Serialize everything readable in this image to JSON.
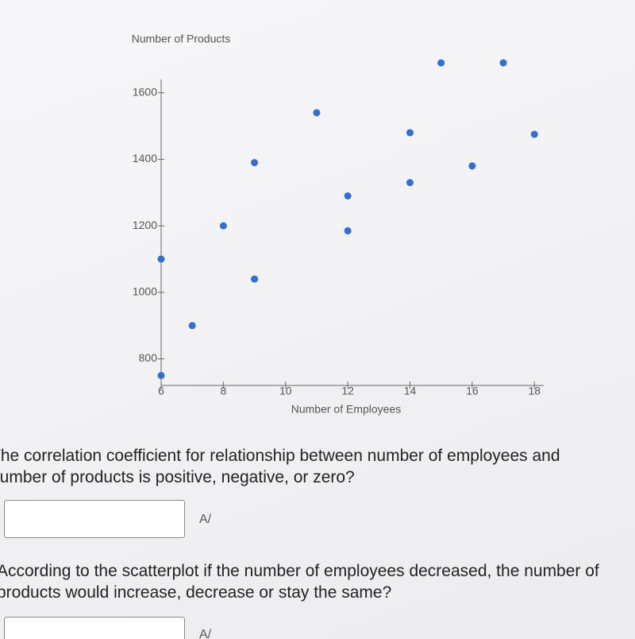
{
  "chart_data": {
    "type": "scatter",
    "x_label": "Number of Employees",
    "y_label": "Number of Products",
    "x": [
      6,
      6,
      7,
      8,
      9,
      9,
      11,
      12,
      12,
      14,
      14,
      15,
      16,
      17,
      18
    ],
    "series": [
      {
        "color": "#2f6fd6",
        "values": [
          1100,
          750,
          900,
          1200,
          1390,
          1040,
          1540,
          1290,
          1185,
          1480,
          1330,
          1690,
          1380,
          1690,
          1475
        ]
      }
    ],
    "xlim": [
      6,
      18.3
    ],
    "ylim": [
      720,
      1640
    ],
    "xticks": [
      6,
      8,
      10,
      12,
      14,
      16,
      18
    ],
    "yticks": [
      800,
      1000,
      1200,
      1400,
      1600
    ]
  },
  "questions": [
    {
      "lines": [
        "The correlation coefficient for relationship between number of employees and",
        "number of products is positive, negative, or zero?"
      ],
      "icon": "A/"
    },
    {
      "lines": [
        "According to the scatterplot if the number of employees decreased, the number of",
        "products would increase, decrease or stay the same?"
      ],
      "icon": "A/"
    }
  ]
}
